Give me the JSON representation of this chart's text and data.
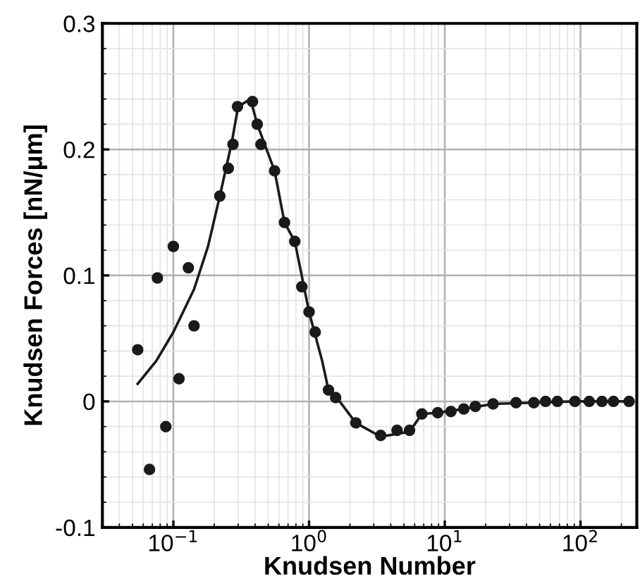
{
  "chart_data": {
    "type": "scatter",
    "xlabel": "Knudsen Number",
    "ylabel": "Knudsen Forces [nN/μm]",
    "log": "x",
    "xlim": [
      0.03,
      260
    ],
    "ylim": [
      -0.1,
      0.3
    ],
    "xticks": [
      {
        "value": 0.1,
        "label": "10$^{−1}$"
      },
      {
        "value": 1,
        "label": "10$^{0}$"
      },
      {
        "value": 10,
        "label": "10$^{1}$"
      },
      {
        "value": 100,
        "label": "10$^{2}$"
      }
    ],
    "yticks": [
      -0.1,
      0,
      0.1,
      0.2,
      0.3
    ],
    "grid": true,
    "legend": false,
    "series": [
      {
        "color": "#1a1a1a",
        "marker": "circle",
        "x": [
          0.0546,
          0.0667,
          0.0763,
          0.088,
          0.1,
          0.11,
          0.129,
          0.142,
          0.22,
          0.254,
          0.275,
          0.297,
          0.383,
          0.415,
          0.442,
          0.557,
          0.659,
          0.785,
          0.884,
          1.0,
          1.11,
          1.39,
          1.57,
          2.21,
          3.37,
          4.45,
          5.5,
          6.78,
          8.87,
          11.1,
          13.8,
          16.8,
          22.7,
          33.5,
          45.3,
          55.3,
          67.5,
          91,
          116,
          144,
          175,
          228
        ],
        "values": [
          0.041,
          -0.054,
          0.098,
          -0.02,
          0.123,
          0.018,
          0.106,
          0.06,
          0.163,
          0.185,
          0.204,
          0.234,
          0.238,
          0.22,
          0.204,
          0.183,
          0.142,
          0.127,
          0.091,
          0.071,
          0.055,
          0.009,
          0.003,
          -0.017,
          -0.027,
          -0.023,
          -0.023,
          -0.01,
          -0.009,
          -0.008,
          -0.006,
          -0.004,
          -0.002,
          -0.001,
          -0.001,
          0,
          0,
          0,
          0,
          0,
          0,
          0
        ]
      },
      {
        "type": "line",
        "color": "#1a1a1a",
        "marker": "none",
        "line_style": "solid",
        "x": [
          0.0546,
          0.0747,
          0.1,
          0.142,
          0.18,
          0.22,
          0.27,
          0.3,
          0.37,
          0.415,
          0.557,
          0.659,
          0.785,
          1.0,
          1.25,
          1.39,
          1.68,
          2.21,
          3.37,
          5.5,
          6.78,
          8.87,
          13.8,
          22.7,
          45.3,
          91,
          228
        ],
        "values": [
          0.014,
          0.032,
          0.055,
          0.089,
          0.123,
          0.163,
          0.206,
          0.234,
          0.24,
          0.22,
          0.183,
          0.142,
          0.127,
          0.071,
          0.032,
          0.009,
          0,
          -0.017,
          -0.028,
          -0.024,
          -0.01,
          -0.009,
          -0.006,
          -0.002,
          -0.001,
          0,
          0
        ]
      }
    ]
  }
}
